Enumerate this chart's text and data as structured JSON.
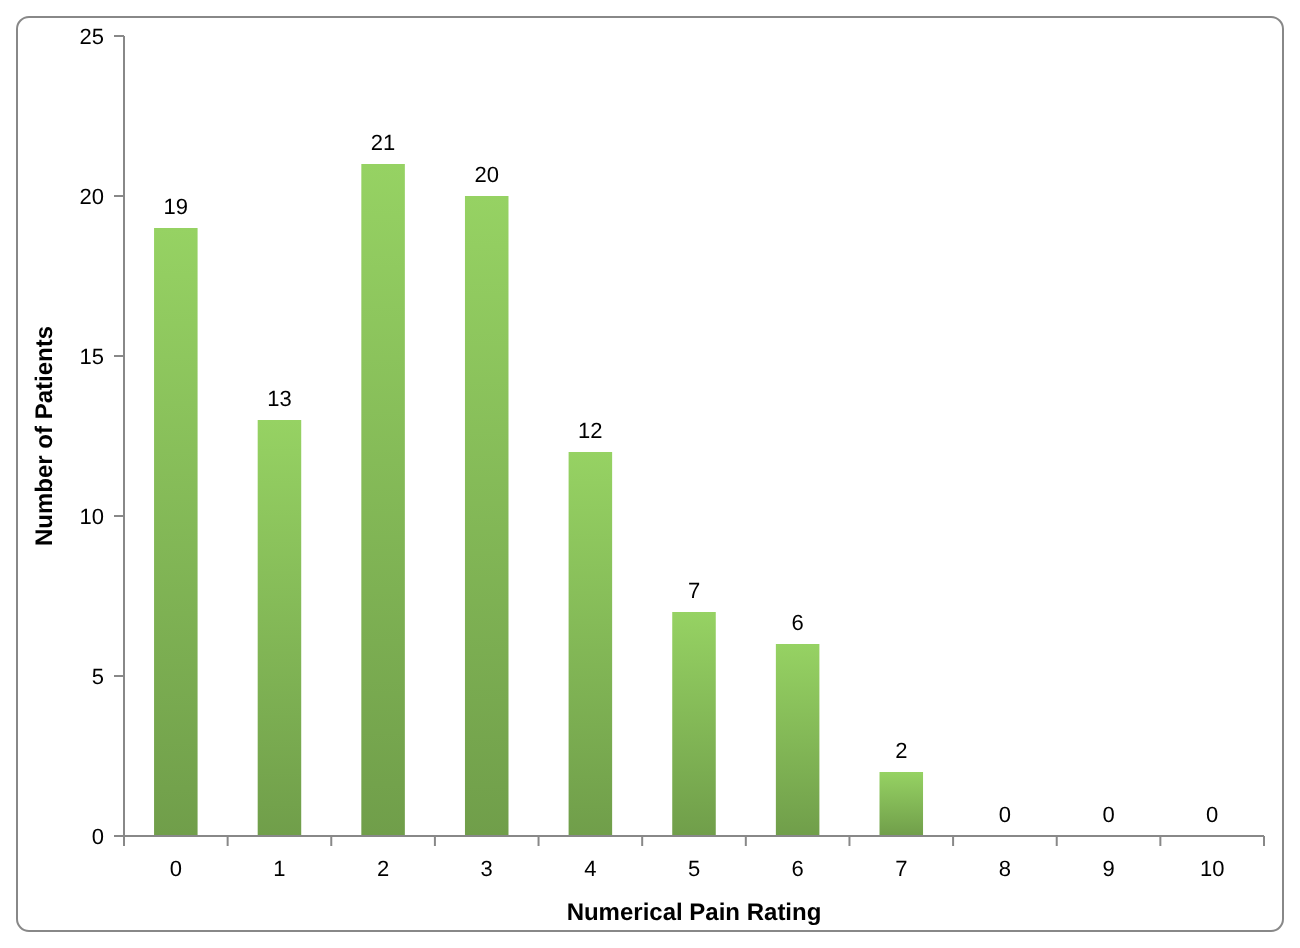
{
  "chart_data": {
    "type": "bar",
    "xlabel": "Numerical Pain Rating",
    "ylabel": "Number of Patients",
    "categories": [
      "0",
      "1",
      "2",
      "3",
      "4",
      "5",
      "6",
      "7",
      "8",
      "9",
      "10"
    ],
    "values": [
      19,
      13,
      21,
      20,
      12,
      7,
      6,
      2,
      0,
      0,
      0
    ],
    "color": "#84b957",
    "ylim": [
      0,
      25
    ],
    "yticks": [
      0,
      5,
      10,
      15,
      20,
      25
    ],
    "grid": false,
    "data_labels": true
  }
}
